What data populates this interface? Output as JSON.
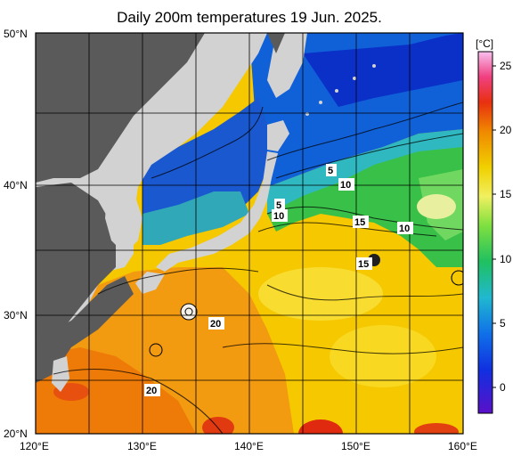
{
  "title": "Daily 200m temperatures 19 Jun. 2025.",
  "colorbar": {
    "unit": "[°C]",
    "ticks": [
      "25",
      "20",
      "15",
      "10",
      "5",
      "0"
    ]
  },
  "axes": {
    "lat_labels": [
      "50°N",
      "40°N",
      "30°N",
      "20°N"
    ],
    "lon_labels": [
      "120°E",
      "130°E",
      "140°E",
      "150°E",
      "160°E"
    ]
  },
  "contour_labels": [
    "5",
    "10",
    "5",
    "10",
    "15",
    "10",
    "15",
    "20",
    "20"
  ],
  "colors": {
    "land": "#d0d0d0",
    "shelf": "#5a5a5a",
    "cold": "#1040c8",
    "cool": "#40b8d8",
    "mid": "#40c840",
    "warm": "#f0d800",
    "hot": "#f07800",
    "hottest": "#e02010"
  }
}
